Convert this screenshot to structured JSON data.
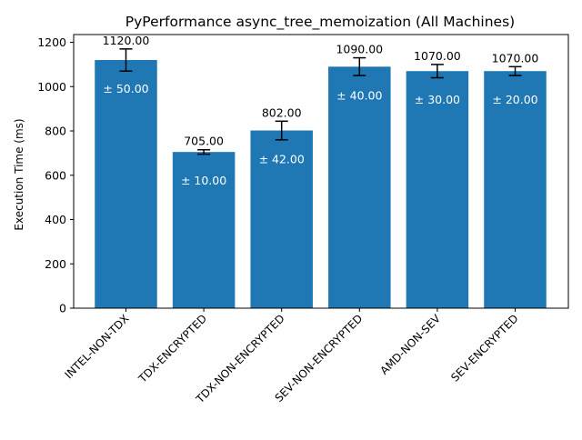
{
  "chart_data": {
    "type": "bar",
    "title": "PyPerformance async_tree_memoization (All Machines)",
    "xlabel": "",
    "ylabel": "Execution Time (ms)",
    "categories": [
      "INTEL-NON-TDX",
      "TDX-ENCRYPTED",
      "TDX-NON-ENCRYPTED",
      "SEV-NON-ENCRYPTED",
      "AMD-NON-SEV",
      "SEV-ENCRYPTED"
    ],
    "values": [
      1120.0,
      705.0,
      802.0,
      1090.0,
      1070.0,
      1070.0
    ],
    "errors": [
      50,
      10,
      42,
      40,
      30,
      20
    ],
    "value_labels": [
      "1120.00",
      "705.00",
      "802.00",
      "1090.00",
      "1070.00",
      "1070.00"
    ],
    "error_labels": [
      "± 50.00",
      "± 10.00",
      "± 42.00",
      "± 40.00",
      "± 30.00",
      "± 20.00"
    ],
    "yticks": [
      0,
      200,
      400,
      600,
      800,
      1000,
      1200
    ],
    "ylim": [
      0,
      1235
    ],
    "grid": false,
    "legend": "none",
    "colors": {
      "bar": "#1f77b4",
      "error_bar": "#000000",
      "inner_label": "#ffffff",
      "text": "#000000"
    }
  }
}
